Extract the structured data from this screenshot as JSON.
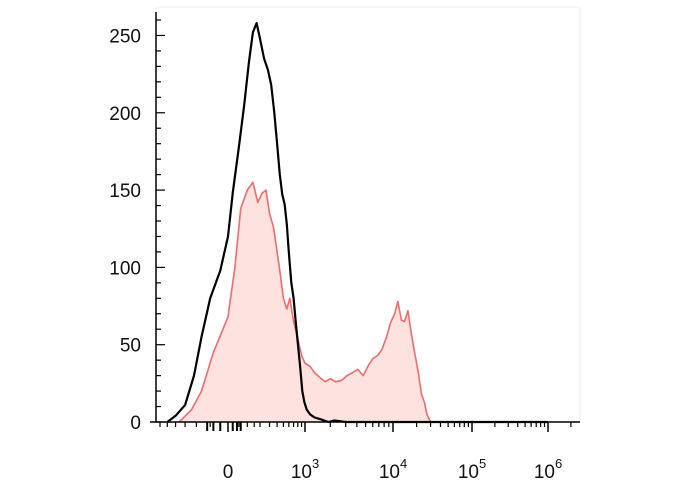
{
  "chart_data": {
    "type": "area",
    "title": "",
    "xlabel": "",
    "ylabel": "",
    "x_scale": "biexponential",
    "xlim": [
      -300,
      1000000
    ],
    "ylim": [
      0,
      260
    ],
    "grid": false,
    "legend": "none",
    "y_ticks": [
      0,
      50,
      100,
      150,
      200,
      250
    ],
    "y_tick_labels": [
      "0",
      "50",
      "100",
      "150",
      "200",
      "250"
    ],
    "x_ticks": [
      {
        "value": 0,
        "base": "0",
        "exp": ""
      },
      {
        "value": 1000,
        "base": "10",
        "exp": "3"
      },
      {
        "value": 10000,
        "base": "10",
        "exp": "4"
      },
      {
        "value": 100000,
        "base": "10",
        "exp": "5"
      },
      {
        "value": 1000000,
        "base": "10",
        "exp": "6"
      }
    ],
    "series": [
      {
        "style": "filled",
        "color": "#f36b6b",
        "fill": "#fde2df",
        "x": [
          -180,
          -120,
          -80,
          -40,
          0,
          30,
          60,
          100,
          140,
          180,
          220,
          260,
          300,
          350,
          400,
          450,
          500,
          560,
          620,
          700,
          800,
          900,
          1000,
          1150,
          1300,
          1500,
          1750,
          2000,
          2300,
          2700,
          3100,
          3600,
          4100,
          4700,
          5300,
          6000,
          6800,
          7600,
          8500,
          9500,
          10500,
          11500,
          12800,
          14000,
          15500,
          17000,
          19000,
          21000,
          23000,
          25000,
          27000,
          30000,
          35000,
          50000,
          1000000
        ],
        "y": [
          0,
          8,
          20,
          45,
          68,
          100,
          138,
          150,
          155,
          142,
          148,
          150,
          135,
          126,
          110,
          95,
          80,
          73,
          80,
          65,
          54,
          43,
          38,
          36,
          32,
          29,
          26,
          28,
          26,
          27,
          30,
          32,
          34,
          30,
          36,
          41,
          43,
          47,
          55,
          65,
          70,
          78,
          66,
          65,
          72,
          58,
          44,
          32,
          18,
          13,
          5,
          0,
          0,
          0,
          0
        ]
      },
      {
        "style": "line",
        "color": "#000000",
        "x": [
          -250,
          -200,
          -150,
          -110,
          -80,
          -50,
          -20,
          0,
          20,
          50,
          80,
          110,
          140,
          170,
          200,
          240,
          280,
          320,
          360,
          400,
          440,
          480,
          520,
          560,
          600,
          650,
          700,
          750,
          800,
          860,
          920,
          980,
          1050,
          1150,
          1300,
          1500,
          1700,
          1900,
          2200,
          3000,
          5000,
          1000000
        ],
        "y": [
          0,
          4,
          11,
          30,
          55,
          80,
          98,
          120,
          148,
          178,
          205,
          232,
          252,
          258,
          248,
          235,
          228,
          218,
          200,
          180,
          160,
          147,
          141,
          128,
          110,
          90,
          80,
          65,
          51,
          36,
          20,
          13,
          8,
          5,
          3,
          2,
          1,
          0,
          1,
          0,
          0,
          0
        ]
      }
    ]
  }
}
